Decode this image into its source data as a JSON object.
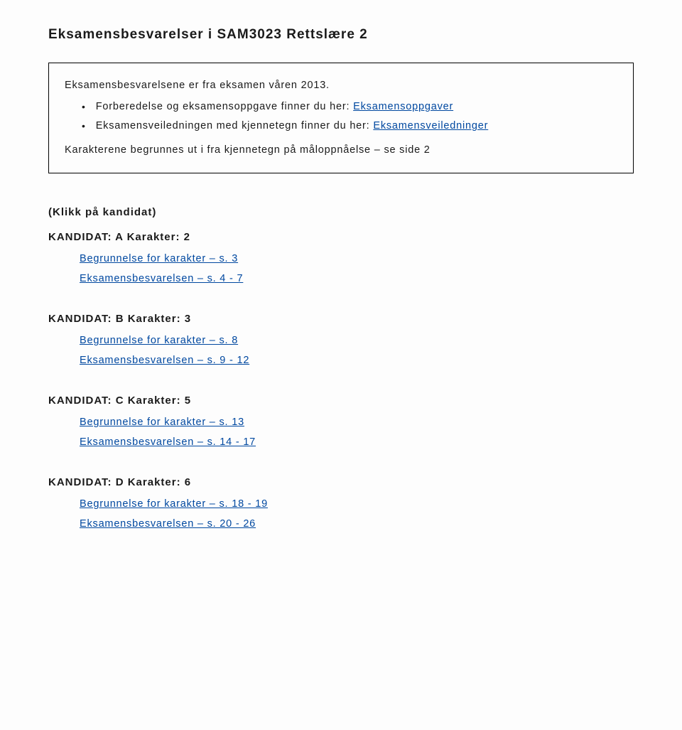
{
  "title": "Eksamensbesvarelser i SAM3023 Rettslære 2",
  "box": {
    "intro": "Eksamensbesvarelsene er fra eksamen våren 2013.",
    "bullet1_prefix": "Forberedelse og eksamensoppgave finner du her: ",
    "bullet1_link": "Eksamensoppgaver",
    "bullet2_prefix": "Eksamensveiledningen med kjennetegn finner du her: ",
    "bullet2_link": "Eksamensveiledninger",
    "footer": "Karakterene begrunnes ut i fra kjennetegn på måloppnåelse – se side 2"
  },
  "click_note": "(Klikk på kandidat)",
  "candidates": [
    {
      "heading": "KANDIDAT: A    Karakter: 2",
      "line1": "Begrunnelse for karakter – s. 3",
      "line2": "Eksamensbesvarelsen – s. 4 - 7"
    },
    {
      "heading": "KANDIDAT: B    Karakter: 3",
      "line1": "Begrunnelse for karakter – s. 8",
      "line2": "Eksamensbesvarelsen – s. 9 - 12"
    },
    {
      "heading": "KANDIDAT: C    Karakter: 5",
      "line1": "Begrunnelse for karakter – s. 13",
      "line2": "Eksamensbesvarelsen – s. 14 - 17"
    },
    {
      "heading": "KANDIDAT: D    Karakter: 6",
      "line1": "Begrunnelse for karakter – s. 18 - 19",
      "line2": "Eksamensbesvarelsen – s. 20 - 26"
    }
  ]
}
